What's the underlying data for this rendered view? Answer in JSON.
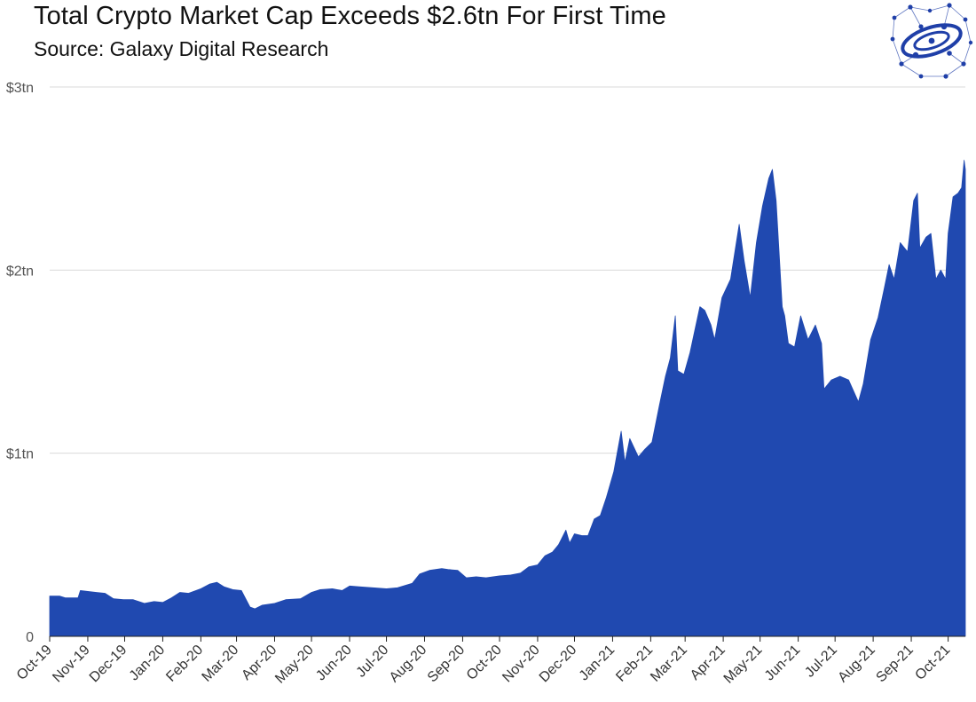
{
  "chart_data": {
    "type": "area",
    "title": "Total Crypto Market Cap Exceeds $2.6tn For First Time",
    "subtitle": "Source: Galaxy Digital Research",
    "xlabel": "",
    "ylabel": "",
    "ylim": [
      0,
      3
    ],
    "y_unit": "trillion USD",
    "yticks": [
      {
        "value": 0,
        "label": "0"
      },
      {
        "value": 1,
        "label": "$1tn"
      },
      {
        "value": 2,
        "label": "$2tn"
      },
      {
        "value": 3,
        "label": "$3tn"
      }
    ],
    "xlim": [
      "2019-10-01",
      "2021-10-15"
    ],
    "xticks": [
      {
        "date": "2019-10-01",
        "label": "Oct-19"
      },
      {
        "date": "2019-11-01",
        "label": "Nov-19"
      },
      {
        "date": "2019-12-01",
        "label": "Dec-19"
      },
      {
        "date": "2020-01-01",
        "label": "Jan-20"
      },
      {
        "date": "2020-02-01",
        "label": "Feb-20"
      },
      {
        "date": "2020-03-01",
        "label": "Mar-20"
      },
      {
        "date": "2020-04-01",
        "label": "Apr-20"
      },
      {
        "date": "2020-05-01",
        "label": "May-20"
      },
      {
        "date": "2020-06-01",
        "label": "Jun-20"
      },
      {
        "date": "2020-07-01",
        "label": "Jul-20"
      },
      {
        "date": "2020-08-01",
        "label": "Aug-20"
      },
      {
        "date": "2020-09-01",
        "label": "Sep-20"
      },
      {
        "date": "2020-10-01",
        "label": "Oct-20"
      },
      {
        "date": "2020-11-01",
        "label": "Nov-20"
      },
      {
        "date": "2020-12-01",
        "label": "Dec-20"
      },
      {
        "date": "2021-01-01",
        "label": "Jan-21"
      },
      {
        "date": "2021-02-01",
        "label": "Feb-21"
      },
      {
        "date": "2021-03-01",
        "label": "Mar-21"
      },
      {
        "date": "2021-04-01",
        "label": "Apr-21"
      },
      {
        "date": "2021-05-01",
        "label": "May-21"
      },
      {
        "date": "2021-06-01",
        "label": "Jun-21"
      },
      {
        "date": "2021-07-01",
        "label": "Jul-21"
      },
      {
        "date": "2021-08-01",
        "label": "Aug-21"
      },
      {
        "date": "2021-09-01",
        "label": "Sep-21"
      },
      {
        "date": "2021-10-01",
        "label": "Oct-21"
      }
    ],
    "grid": true,
    "legend": "none",
    "series": [
      {
        "color": "#2049B0",
        "points": [
          [
            "2019-10-01",
            0.22
          ],
          [
            "2019-10-09",
            0.22
          ],
          [
            "2019-10-14",
            0.21
          ],
          [
            "2019-10-24",
            0.21
          ],
          [
            "2019-10-26",
            0.25
          ],
          [
            "2019-11-01",
            0.245
          ],
          [
            "2019-11-08",
            0.24
          ],
          [
            "2019-11-15",
            0.235
          ],
          [
            "2019-11-22",
            0.205
          ],
          [
            "2019-11-30",
            0.2
          ],
          [
            "2019-12-08",
            0.2
          ],
          [
            "2019-12-17",
            0.18
          ],
          [
            "2019-12-25",
            0.19
          ],
          [
            "2020-01-01",
            0.185
          ],
          [
            "2020-01-08",
            0.21
          ],
          [
            "2020-01-15",
            0.24
          ],
          [
            "2020-01-22",
            0.235
          ],
          [
            "2020-02-01",
            0.26
          ],
          [
            "2020-02-08",
            0.285
          ],
          [
            "2020-02-14",
            0.295
          ],
          [
            "2020-02-20",
            0.27
          ],
          [
            "2020-02-27",
            0.255
          ],
          [
            "2020-03-05",
            0.25
          ],
          [
            "2020-03-12",
            0.16
          ],
          [
            "2020-03-16",
            0.15
          ],
          [
            "2020-03-22",
            0.17
          ],
          [
            "2020-04-01",
            0.18
          ],
          [
            "2020-04-10",
            0.2
          ],
          [
            "2020-04-22",
            0.205
          ],
          [
            "2020-05-01",
            0.24
          ],
          [
            "2020-05-08",
            0.255
          ],
          [
            "2020-05-18",
            0.26
          ],
          [
            "2020-05-26",
            0.25
          ],
          [
            "2020-06-01",
            0.275
          ],
          [
            "2020-06-10",
            0.27
          ],
          [
            "2020-06-20",
            0.265
          ],
          [
            "2020-07-01",
            0.26
          ],
          [
            "2020-07-10",
            0.265
          ],
          [
            "2020-07-22",
            0.29
          ],
          [
            "2020-07-28",
            0.34
          ],
          [
            "2020-08-05",
            0.36
          ],
          [
            "2020-08-15",
            0.37
          ],
          [
            "2020-08-20",
            0.365
          ],
          [
            "2020-08-28",
            0.36
          ],
          [
            "2020-09-04",
            0.32
          ],
          [
            "2020-09-12",
            0.325
          ],
          [
            "2020-09-20",
            0.32
          ],
          [
            "2020-10-01",
            0.33
          ],
          [
            "2020-10-10",
            0.335
          ],
          [
            "2020-10-18",
            0.345
          ],
          [
            "2020-10-25",
            0.38
          ],
          [
            "2020-11-01",
            0.39
          ],
          [
            "2020-11-07",
            0.44
          ],
          [
            "2020-11-13",
            0.46
          ],
          [
            "2020-11-18",
            0.5
          ],
          [
            "2020-11-24",
            0.58
          ],
          [
            "2020-11-27",
            0.51
          ],
          [
            "2020-12-01",
            0.56
          ],
          [
            "2020-12-07",
            0.55
          ],
          [
            "2020-12-12",
            0.55
          ],
          [
            "2020-12-17",
            0.64
          ],
          [
            "2020-12-22",
            0.66
          ],
          [
            "2020-12-27",
            0.76
          ],
          [
            "2021-01-02",
            0.9
          ],
          [
            "2021-01-08",
            1.12
          ],
          [
            "2021-01-11",
            0.95
          ],
          [
            "2021-01-15",
            1.08
          ],
          [
            "2021-01-22",
            0.98
          ],
          [
            "2021-01-27",
            1.02
          ],
          [
            "2021-02-02",
            1.06
          ],
          [
            "2021-02-08",
            1.26
          ],
          [
            "2021-02-13",
            1.42
          ],
          [
            "2021-02-17",
            1.52
          ],
          [
            "2021-02-21",
            1.75
          ],
          [
            "2021-02-23",
            1.45
          ],
          [
            "2021-02-28",
            1.43
          ],
          [
            "2021-03-05",
            1.55
          ],
          [
            "2021-03-13",
            1.8
          ],
          [
            "2021-03-17",
            1.78
          ],
          [
            "2021-03-22",
            1.7
          ],
          [
            "2021-03-25",
            1.62
          ],
          [
            "2021-03-31",
            1.85
          ],
          [
            "2021-04-07",
            1.95
          ],
          [
            "2021-04-14",
            2.25
          ],
          [
            "2021-04-18",
            2.05
          ],
          [
            "2021-04-23",
            1.85
          ],
          [
            "2021-04-28",
            2.15
          ],
          [
            "2021-05-03",
            2.35
          ],
          [
            "2021-05-08",
            2.5
          ],
          [
            "2021-05-11",
            2.55
          ],
          [
            "2021-05-14",
            2.38
          ],
          [
            "2021-05-19",
            1.8
          ],
          [
            "2021-05-21",
            1.75
          ],
          [
            "2021-05-24",
            1.6
          ],
          [
            "2021-05-29",
            1.58
          ],
          [
            "2021-06-03",
            1.75
          ],
          [
            "2021-06-09",
            1.62
          ],
          [
            "2021-06-15",
            1.7
          ],
          [
            "2021-06-20",
            1.6
          ],
          [
            "2021-06-22",
            1.35
          ],
          [
            "2021-06-28",
            1.4
          ],
          [
            "2021-07-05",
            1.42
          ],
          [
            "2021-07-12",
            1.4
          ],
          [
            "2021-07-20",
            1.28
          ],
          [
            "2021-07-24",
            1.38
          ],
          [
            "2021-07-30",
            1.62
          ],
          [
            "2021-08-05",
            1.74
          ],
          [
            "2021-08-10",
            1.9
          ],
          [
            "2021-08-14",
            2.03
          ],
          [
            "2021-08-18",
            1.95
          ],
          [
            "2021-08-23",
            2.15
          ],
          [
            "2021-08-29",
            2.1
          ],
          [
            "2021-09-03",
            2.38
          ],
          [
            "2021-09-06",
            2.42
          ],
          [
            "2021-09-08",
            2.12
          ],
          [
            "2021-09-13",
            2.18
          ],
          [
            "2021-09-17",
            2.2
          ],
          [
            "2021-09-21",
            1.95
          ],
          [
            "2021-09-25",
            2.0
          ],
          [
            "2021-09-29",
            1.95
          ],
          [
            "2021-10-01",
            2.2
          ],
          [
            "2021-10-05",
            2.4
          ],
          [
            "2021-10-09",
            2.42
          ],
          [
            "2021-10-12",
            2.45
          ],
          [
            "2021-10-14",
            2.6
          ],
          [
            "2021-10-15",
            2.55
          ]
        ]
      }
    ]
  },
  "logo": {
    "name": "galaxy-digital-logo-icon",
    "color": "#1F3FA8"
  },
  "colors": {
    "area": "#2049B0",
    "grid": "#D9D9D9",
    "axis": "#222222",
    "text": "#111111"
  }
}
